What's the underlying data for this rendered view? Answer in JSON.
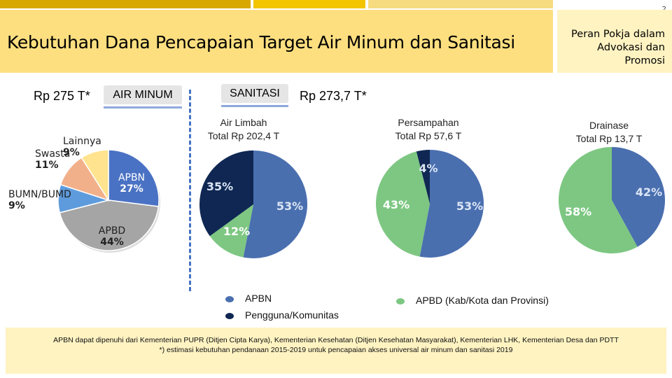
{
  "page_number": "2",
  "title": "Kebutuhan Dana Pencapaian Target Air Minum dan Sanitasi",
  "side_panel": {
    "lines": [
      "Peran Pokja dalam",
      "Advokasi dan",
      "Promosi"
    ]
  },
  "colors": {
    "top_bar_1": "#D8A800",
    "top_bar_2": "#F2C500",
    "top_bar_3": "#F7DB80",
    "title_bg": "#FDDF80",
    "side_bg": "#FFF3C2",
    "footer_bg": "#FFF3C2",
    "apbn": "#4A6FAF",
    "pengguna": "#0F2752",
    "apbd_green": "#7DC782",
    "swasta": "#F2B08A",
    "lainnya": "#FFE38F",
    "bumn": "#5E9BDC",
    "apbd_gray": "#A5A5A5"
  },
  "air_minum": {
    "total": "Rp 275 T*",
    "tag": "AIR MINUM"
  },
  "sanitasi": {
    "total": "Rp 273,7 T*",
    "tag": "SANITASI"
  },
  "chart_data": [
    {
      "type": "pie",
      "title": "Air Minum",
      "slices": [
        {
          "label": "APBN",
          "value": 27,
          "display": "27%",
          "color": "#4A72C4"
        },
        {
          "label": "APBD",
          "value": 44,
          "display": "44%",
          "color": "#A5A5A5"
        },
        {
          "label": "BUMN/BUMD",
          "value": 9,
          "display": "9%",
          "color": "#5E9BDC"
        },
        {
          "label": "Swasta",
          "value": 11,
          "display": "11%",
          "color": "#F2B08A"
        },
        {
          "label": "Lainnya",
          "value": 9,
          "display": "9%",
          "color": "#FFE38F"
        }
      ]
    },
    {
      "type": "pie",
      "title_line1": "Air Limbah",
      "title_line2": "Total Rp 202,4 T",
      "slices": [
        {
          "label": "APBN",
          "value": 53,
          "display": "53%",
          "color": "#4A6FAF"
        },
        {
          "label": "APBD",
          "value": 12,
          "display": "12%",
          "color": "#7DC782"
        },
        {
          "label": "Pengguna/Komunitas",
          "value": 35,
          "display": "35%",
          "color": "#0F2752"
        }
      ]
    },
    {
      "type": "pie",
      "title_line1": "Persampahan",
      "title_line2": "Total Rp 57,6 T",
      "slices": [
        {
          "label": "APBN",
          "value": 53,
          "display": "53%",
          "color": "#4A6FAF"
        },
        {
          "label": "APBD",
          "value": 43,
          "display": "43%",
          "color": "#7DC782"
        },
        {
          "label": "Pengguna/Komunitas",
          "value": 4,
          "display": "4%",
          "color": "#0F2752"
        }
      ]
    },
    {
      "type": "pie",
      "title_line1": "Drainase",
      "title_line2": "Total Rp 13,7 T",
      "slices": [
        {
          "label": "APBN",
          "value": 42,
          "display": "42%",
          "color": "#4A6FAF"
        },
        {
          "label": "APBD",
          "value": 58,
          "display": "58%",
          "color": "#7DC782"
        }
      ]
    }
  ],
  "legend": {
    "apbn": "APBN",
    "pengguna": "Pengguna/Komunitas",
    "apbd": "APBD (Kab/Kota dan Provinsi)"
  },
  "footer": {
    "line1": "APBN dapat dipenuhi dari Kementerian PUPR (Ditjen Cipta Karya), Kementerian Kesehatan (Ditjen Kesehatan Masyarakat), Kementerian LHK, Kementerian Desa dan PDTT",
    "line2": "*) estimasi kebutuhan pendanaan 2015-2019 untuk pencapaian akses universal air minum dan sanitasi 2019"
  }
}
